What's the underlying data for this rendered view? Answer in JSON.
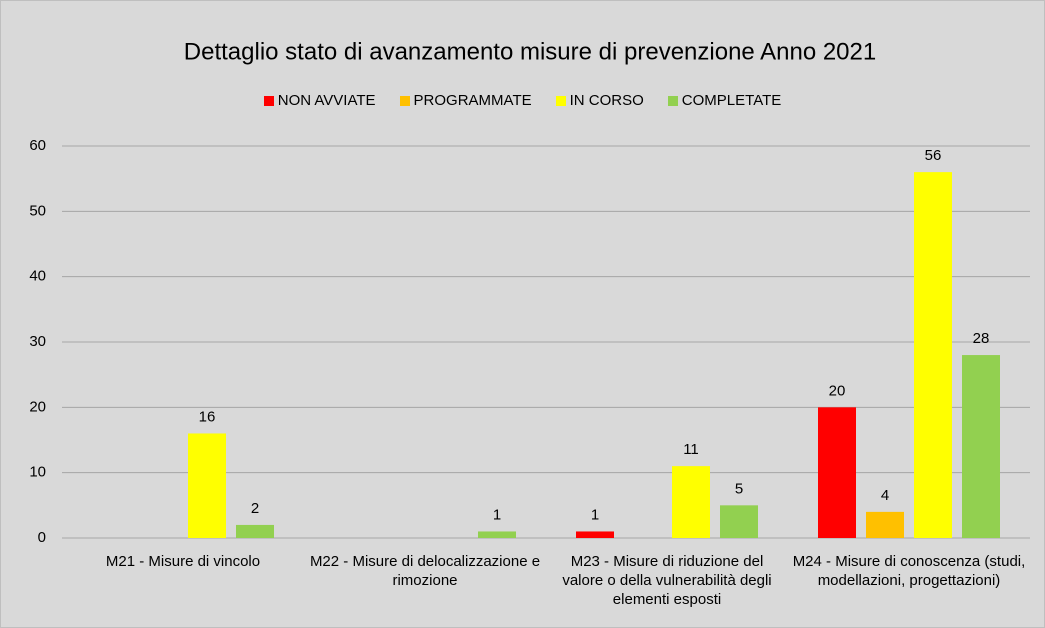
{
  "chart_data": {
    "type": "bar",
    "title": "Dettaglio stato di avanzamento misure di prevenzione Anno 2021",
    "categories": [
      "M21 - Misure di vincolo",
      "M22 - Misure di delocalizzazione e rimozione",
      "M23 - Misure di riduzione del valore o della vulnerabilità degli elementi esposti",
      "M24 - Misure di conoscenza (studi, modellazioni, progettazioni)"
    ],
    "series": [
      {
        "name": "NON AVVIATE",
        "color": "#ff0000",
        "values": [
          null,
          null,
          1,
          20
        ]
      },
      {
        "name": "PROGRAMMATE",
        "color": "#ffc000",
        "values": [
          null,
          null,
          null,
          4
        ]
      },
      {
        "name": "IN CORSO",
        "color": "#ffff00",
        "values": [
          16,
          null,
          11,
          56
        ]
      },
      {
        "name": "COMPLETATE",
        "color": "#92d050",
        "values": [
          2,
          1,
          5,
          28
        ]
      }
    ],
    "ylim": [
      0,
      60
    ],
    "yticks": [
      0,
      10,
      20,
      30,
      40,
      50,
      60
    ],
    "grid": true,
    "legend": "top"
  }
}
